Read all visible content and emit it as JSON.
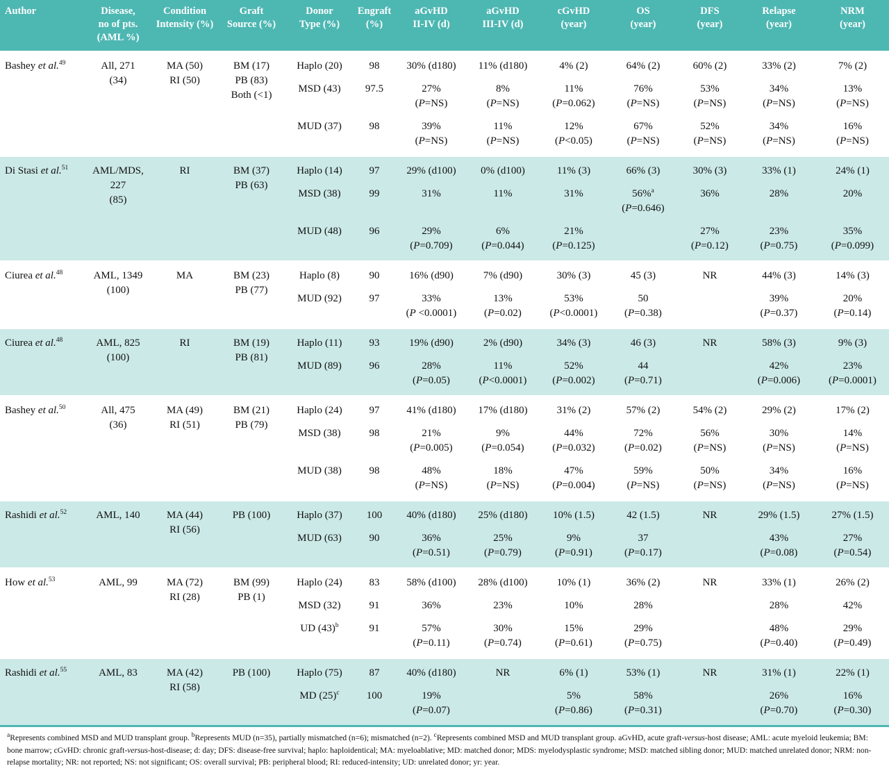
{
  "colors": {
    "header_bg": "#4db7b2",
    "row_shaded_bg": "#cbe9e7",
    "header_text": "#ffffff"
  },
  "table": {
    "columns": [
      "Author",
      "Disease,\nno of pts.\n(AML %)",
      "Condition\nIntensity (%)",
      "Graft\nSource (%)",
      "Donor\nType (%)",
      "Engraft\n(%)",
      "aGvHD\nII-IV (d)",
      "aGvHD\nIII-IV (d)",
      "cGvHD\n(year)",
      "OS\n(year)",
      "DFS\n(year)",
      "Relapse\n(year)",
      "NRM\n(year)"
    ],
    "groups": [
      {
        "shaded": false,
        "author": "Bashey *et al.*^49",
        "disease": "All, 271\n(34)",
        "condition": "MA (50)\nRI (50)",
        "graft": "BM (17)\nPB (83)\nBoth (<1)",
        "subrows": [
          [
            "Haplo (20)",
            "98",
            "30% (d180)",
            "11% (d180)",
            "4% (2)",
            "64% (2)",
            "60% (2)",
            "33% (2)",
            "7% (2)"
          ],
          [
            "MSD (43)",
            "97.5",
            "27%\n(P=NS)",
            "8%\n(P=NS)",
            "11%\n(P=0.062)",
            "76%\n(P=NS)",
            "53%\n(P=NS)",
            "34%\n(P=NS)",
            "13%\n(P=NS)"
          ],
          [
            "MUD (37)",
            "98",
            "39%\n(P=NS)",
            "11%\n(P=NS)",
            "12%\n(P<0.05)",
            "67%\n(P=NS)",
            "52%\n(P=NS)",
            "34%\n(P=NS)",
            "16%\n(P=NS)"
          ]
        ]
      },
      {
        "shaded": true,
        "author": "Di Stasi *et al.*^51",
        "disease": "AML/MDS, 227\n(85)",
        "condition": "RI",
        "graft": "BM (37)\nPB (63)",
        "subrows": [
          [
            "Haplo (14)",
            "97",
            "29% (d100)",
            "0% (d100)",
            "11% (3)",
            "66% (3)",
            "30% (3)",
            "33% (1)",
            "24% (1)"
          ],
          [
            "MSD (38)",
            "99",
            "31%",
            "11%",
            "31%",
            "56%^a\n(P=0.646)",
            "36%",
            "28%",
            "20%"
          ],
          [
            "MUD (48)",
            "96",
            "29%\n(P=0.709)",
            "6%\n(P=0.044)",
            "21%\n(P=0.125)",
            "",
            "27%\n(P=0.12)",
            "23%\n(P=0.75)",
            "35%\n(P=0.099)"
          ]
        ]
      },
      {
        "shaded": false,
        "author": "Ciurea *et al.*^48",
        "disease": "AML, 1349\n(100)",
        "condition": "MA",
        "graft": "BM (23)\nPB (77)",
        "subrows": [
          [
            "Haplo (8)",
            "90",
            "16% (d90)",
            "7% (d90)",
            "30% (3)",
            "45 (3)",
            "NR",
            "44% (3)",
            "14% (3)"
          ],
          [
            "MUD (92)",
            "97",
            "33%\n(P <0.0001)",
            "13%\n(P=0.02)",
            "53%\n(P<0.0001)",
            "50\n(P=0.38)",
            "",
            "39%\n(P=0.37)",
            "20%\n(P=0.14)"
          ]
        ]
      },
      {
        "shaded": true,
        "author": "Ciurea *et al.*^48",
        "disease": "AML, 825\n(100)",
        "condition": "RI",
        "graft": "BM (19)\nPB (81)",
        "subrows": [
          [
            "Haplo (11)",
            "93",
            "19% (d90)",
            "2% (d90)",
            "34% (3)",
            "46 (3)",
            "NR",
            "58% (3)",
            "9% (3)"
          ],
          [
            "MUD (89)",
            "96",
            "28%\n(P=0.05)",
            "11%\n(P<0.0001)",
            "52%\n(P=0.002)",
            "44\n(P=0.71)",
            "",
            "42%\n(P=0.006)",
            "23%\n(P=0.0001)"
          ]
        ]
      },
      {
        "shaded": false,
        "author": "Bashey *et al.*^50",
        "disease": "All, 475\n(36)",
        "condition": "MA (49)\nRI (51)",
        "graft": "BM (21)\nPB (79)",
        "subrows": [
          [
            "Haplo (24)",
            "97",
            "41% (d180)",
            "17% (d180)",
            "31% (2)",
            "57% (2)",
            "54% (2)",
            "29% (2)",
            "17% (2)"
          ],
          [
            "MSD (38)",
            "98",
            "21%\n(P=0.005)",
            "9%\n(P=0.054)",
            "44%\n(P=0.032)",
            "72%\n(P=0.02)",
            "56%\n(P=NS)",
            "30%\n(P=NS)",
            "14%\n(P=NS)"
          ],
          [
            "MUD (38)",
            "98",
            "48%\n(P=NS)",
            "18%\n(P=NS)",
            "47%\n(P=0.004)",
            "59%\n(P=NS)",
            "50%\n(P=NS)",
            "34%\n(P=NS)",
            "16%\n(P=NS)"
          ]
        ]
      },
      {
        "shaded": true,
        "author": "Rashidi *et al.*^52",
        "disease": "AML, 140",
        "condition": "MA (44)\nRI (56)",
        "graft": "PB (100)",
        "subrows": [
          [
            "Haplo (37)",
            "100",
            "40% (d180)",
            "25% (d180)",
            "10% (1.5)",
            "42 (1.5)",
            "NR",
            "29% (1.5)",
            "27% (1.5)"
          ],
          [
            "MUD (63)",
            "90",
            "36%\n(P=0.51)",
            "25%\n(P=0.79)",
            "9%\n(P=0.91)",
            "37\n(P=0.17)",
            "",
            "43%\n(P=0.08)",
            "27%\n(P=0.54)"
          ]
        ]
      },
      {
        "shaded": false,
        "author": "How *et al.*^53",
        "disease": "AML, 99",
        "condition": "MA (72)\nRI (28)",
        "graft": "BM (99)\nPB (1)",
        "subrows": [
          [
            "Haplo (24)",
            "83",
            "58% (d100)",
            "28% (d100)",
            "10% (1)",
            "36% (2)",
            "NR",
            "33% (1)",
            "26% (2)"
          ],
          [
            "MSD (32)",
            "91",
            "36%",
            "23%",
            "10%",
            "28%",
            "",
            "28%",
            "42%"
          ],
          [
            "UD (43)^b",
            "91",
            "57%\n(P=0.11)",
            "30%\n(P=0.74)",
            "15%\n(P=0.61)",
            "29%\n(P=0.75)",
            "",
            "48%\n(P=0.40)",
            "29%\n(P=0.49)"
          ]
        ]
      },
      {
        "shaded": true,
        "author": "Rashidi *et al.*^55",
        "disease": "AML, 83",
        "condition": "MA (42)\nRI (58)",
        "graft": "PB (100)",
        "subrows": [
          [
            "Haplo (75)",
            "87",
            "40% (d180)",
            "NR",
            "6% (1)",
            "53% (1)",
            "NR",
            "31% (1)",
            "22% (1)"
          ],
          [
            "MD (25)^c",
            "100",
            "19%\n(P=0.07)",
            "",
            "5%\n(P=0.86)",
            "58%\n(P=0.31)",
            "",
            "26%\n(P=0.70)",
            "16%\n(P=0.30)"
          ]
        ]
      }
    ],
    "footnote": "^aRepresents combined MSD and MUD transplant group. ^bRepresents MUD (n=35), partially mismatched (n=6); mismatched (n=2). ^cRepresents combined MSD and MUD transplant group. aGvHD, acute graft-versus-host disease; AML: acute myeloid leukemia; BM: bone marrow; cGvHD: chronic graft-versus-host-disease; d: day; DFS: disease-free survival; haplo: haploidentical; MA: myeloablative; MD: matched donor; MDS: myelodysplastic syndrome; MSD: matched sibling donor; MUD: matched unrelated donor; NRM: non-relapse mortality; NR: not reported; NS: not significant; OS: overall survival; PB: peripheral blood; RI: reduced-intensity; UD: unrelated donor; yr: year."
  }
}
